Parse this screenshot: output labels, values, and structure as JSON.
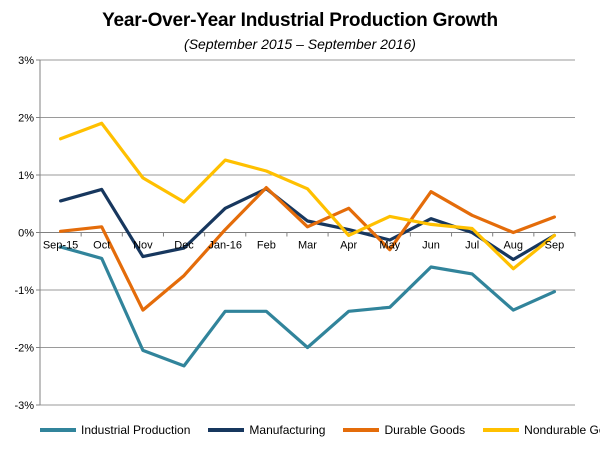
{
  "chart_data": {
    "type": "line",
    "title": "Year-Over-Year Industrial Production Growth",
    "subtitle": "(September 2015 – September 2016)",
    "categories": [
      "Sep-15",
      "Oct",
      "Nov",
      "Dec",
      "Jan-16",
      "Feb",
      "Mar",
      "Apr",
      "May",
      "Jun",
      "Jul",
      "Aug",
      "Sep"
    ],
    "ylim": [
      -3,
      3
    ],
    "yticks": [
      3,
      2,
      1,
      0,
      -1,
      -2,
      -3
    ],
    "ytick_labels": [
      "3%",
      "2%",
      "1%",
      "0%",
      "-1%",
      "-2%",
      "-3%"
    ],
    "grid": true,
    "legend_position": "bottom",
    "series": [
      {
        "name": "Industrial Production",
        "color": "#31849B",
        "values": [
          -0.25,
          -0.45,
          -2.05,
          -2.32,
          -1.37,
          -1.37,
          -2.0,
          -1.37,
          -1.3,
          -0.6,
          -0.72,
          -1.35,
          -1.03
        ]
      },
      {
        "name": "Manufacturing",
        "color": "#17375E",
        "values": [
          0.55,
          0.75,
          -0.42,
          -0.27,
          0.42,
          0.76,
          0.2,
          0.05,
          -0.13,
          0.24,
          0.0,
          -0.47,
          -0.05
        ]
      },
      {
        "name": "Durable Goods",
        "color": "#E46C0A",
        "values": [
          0.02,
          0.1,
          -1.35,
          -0.75,
          0.05,
          0.78,
          0.1,
          0.42,
          -0.3,
          0.71,
          0.3,
          0.0,
          0.27
        ]
      },
      {
        "name": "Nondurable Goods",
        "color": "#FFC000",
        "values": [
          1.63,
          1.9,
          0.95,
          0.53,
          1.26,
          1.07,
          0.76,
          -0.05,
          0.28,
          0.14,
          0.07,
          -0.63,
          -0.05
        ]
      }
    ]
  }
}
